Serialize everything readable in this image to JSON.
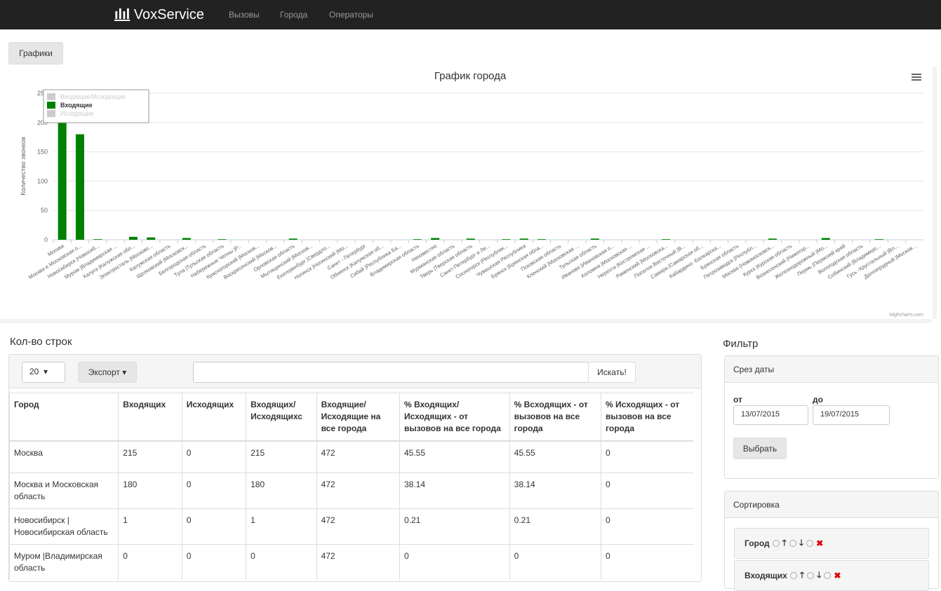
{
  "nav": {
    "brand": "VoxService",
    "links": [
      "Вызовы",
      "Города",
      "Операторы"
    ]
  },
  "charts_button": "Графики",
  "chart_data": {
    "type": "bar",
    "title": "График города",
    "y_label": "Количество звонков",
    "credits": "Highcharts.com",
    "categories": [
      "Москва",
      "Москва и Московская о...",
      "Новосибирск |Новосиб...",
      "Муром |Владимирская ...",
      "Калуга |Калужская обл...",
      "Электросталь |Московс...",
      "Калужская область",
      "Щелковский |Московск...",
      "Белгородская область",
      "Тула |Тульская область",
      "Набережные Челны |Р...",
      "Красногорский |Москов...",
      "Воскресенский |Москов...",
      "Орловская область",
      "Мытищинский |Москов...",
      "Екатеринбург |Свердло...",
      "Ногинск |Ногинский |Мо...",
      "Санкт - Петербург",
      "Обнинск |Калужская об...",
      "Сибай |Республика Ба...",
      "Владимирская область",
      "Неизвестно",
      "Мурманская область",
      "Тверь |Тверская область",
      "Санкт-Петербург и Ле...",
      "Сосногорск |Республик...",
      "Чувашская Республика",
      "Брянск |Брянская обла...",
      "Псковская область",
      "Кленский |Московская ...",
      "Тульская область",
      "Иваново |Ивановская о...",
      "Коломна |Московская ...",
      "Нерехта |Костромская ...",
      "Раменский |Московска...",
      "Поселок Восточный |В...",
      "Самара |Самарская об...",
      "Кабардино -Балкарска...",
      "Брянская область",
      "Петрозаводск |Республ...",
      "Москва (Новомосковск...",
      "Курск |Курская область",
      "Вознесенский |Нижегор...",
      "Железнодорожный |Мо...",
      "Пермь |Пермский край",
      "Вологодская область",
      "Собинский |Владимирс...",
      "Гусь -Хрустальный |Вл...",
      "Долгопрудный |Москов..."
    ],
    "series": [
      {
        "name": "Входящие/Исходящие",
        "color": "#cccccc",
        "visible": false
      },
      {
        "name": "Входящие",
        "color": "#008000",
        "visible": true,
        "values": [
          215,
          180,
          1,
          0,
          5,
          4,
          0,
          3,
          0,
          1,
          0,
          0,
          0,
          2,
          0,
          0,
          0,
          0,
          0,
          0,
          1,
          3,
          0,
          2,
          0,
          1,
          2,
          1,
          0,
          0,
          2,
          0,
          0,
          0,
          1,
          0,
          0,
          0,
          0,
          0,
          2,
          0,
          0,
          3,
          0,
          0,
          1,
          0,
          0
        ]
      },
      {
        "name": "Исходящие",
        "color": "#cccccc",
        "visible": false
      }
    ],
    "ylim": [
      0,
      250
    ],
    "yticks": [
      0,
      50,
      100,
      150,
      200,
      250
    ],
    "grid": true
  },
  "table_section": {
    "title": "Кол-во строк",
    "page_size": "20",
    "export": "Экспорт",
    "search_button": "Искать!",
    "headers": [
      "Город",
      "Входящих",
      "Исходящих",
      "Входящих/ Исходящихс",
      "Входящие/ Исходящие на все города",
      "% Входящих/Исходящих - от вызовов на все города",
      "% Всходящих - от вызовов на все города",
      "% Исходящих - от вызовов на все города"
    ],
    "rows": [
      [
        "Москва",
        215,
        0,
        215,
        472,
        45.55,
        45.55,
        0
      ],
      [
        "Москва и Московская область",
        180,
        0,
        180,
        472,
        38.14,
        38.14,
        0
      ],
      [
        "Новосибирск | Новосибирская область",
        1,
        0,
        1,
        472,
        0.21,
        0.21,
        0
      ],
      [
        "Муром |Владимирская область",
        0,
        0,
        0,
        472,
        0,
        0,
        0
      ]
    ]
  },
  "filter": {
    "title": "Фильтр",
    "date_panel": {
      "title": "Срез даты",
      "from_label": "от",
      "to_label": "до",
      "from": "13/07/2015",
      "to": "19/07/2015",
      "button": "Выбрать"
    },
    "sort_panel": {
      "title": "Сортировка",
      "items": [
        "Город",
        "Входящих"
      ]
    }
  }
}
